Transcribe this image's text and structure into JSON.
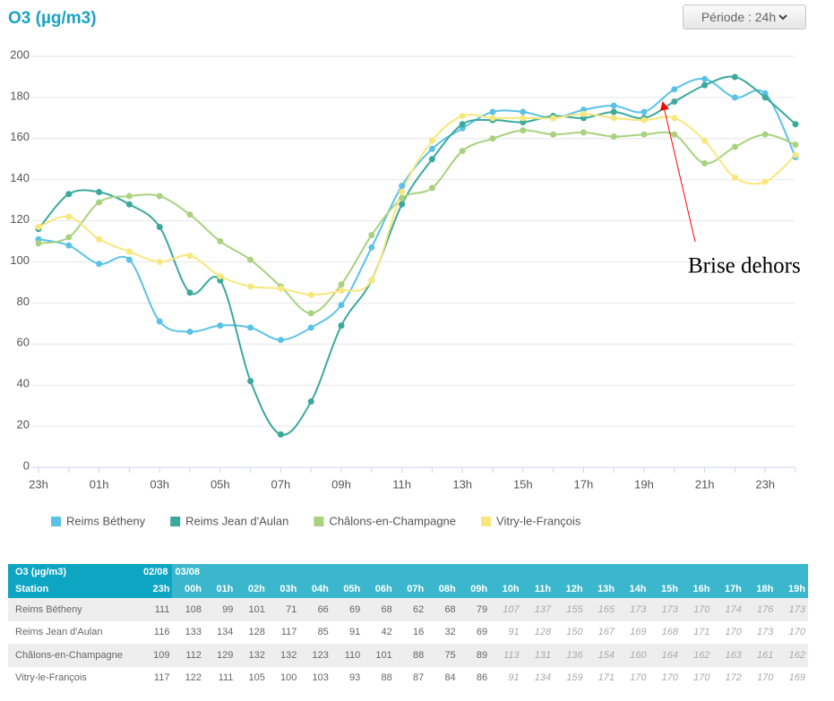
{
  "title": "O3 (µg/m3)",
  "period_button": "Période : 24h",
  "chart_data": {
    "type": "line",
    "categories": [
      "23h",
      null,
      "01h",
      null,
      "03h",
      null,
      "05h",
      null,
      "07h",
      null,
      "09h",
      null,
      "11h",
      null,
      "13h",
      null,
      "15h",
      null,
      "17h",
      null,
      "19h",
      null,
      "21h",
      null,
      "23h",
      null
    ],
    "series": [
      {
        "name": "Reims Bétheny",
        "color": "#5bc2e7",
        "values": [
          111,
          108,
          99,
          101,
          71,
          66,
          69,
          68,
          62,
          68,
          79,
          107,
          137,
          155,
          165,
          173,
          173,
          170,
          174,
          176,
          173,
          184,
          189,
          180,
          182,
          151
        ]
      },
      {
        "name": "Reims Jean d'Aulan",
        "color": "#3aa99b",
        "values": [
          116,
          133,
          134,
          128,
          117,
          85,
          91,
          42,
          16,
          32,
          69,
          91,
          128,
          150,
          167,
          169,
          168,
          171,
          170,
          173,
          170,
          178,
          186,
          190,
          180,
          167
        ]
      },
      {
        "name": "Châlons-en-Champagne",
        "color": "#a8d27f",
        "values": [
          109,
          112,
          129,
          132,
          132,
          123,
          110,
          101,
          88,
          75,
          89,
          113,
          131,
          136,
          154,
          160,
          164,
          162,
          163,
          161,
          162,
          162,
          148,
          156,
          162,
          157
        ]
      },
      {
        "name": "Vitry-le-François",
        "color": "#f8e77c",
        "values": [
          117,
          122,
          111,
          105,
          100,
          103,
          93,
          88,
          87,
          84,
          86,
          91,
          134,
          159,
          171,
          170,
          170,
          170,
          172,
          170,
          169,
          170,
          159,
          141,
          139,
          152
        ]
      }
    ],
    "ylim": [
      0,
      200
    ],
    "yticks": [
      0,
      20,
      40,
      60,
      80,
      100,
      120,
      140,
      160,
      180,
      200
    ],
    "grid": true,
    "legend": "bottom",
    "annotation": "Brise dehors"
  },
  "table": {
    "title": "O3 (µg/m3)",
    "dates": [
      "02/08",
      "03/08"
    ],
    "station_header": "Station",
    "hours": [
      "23h",
      "00h",
      "01h",
      "02h",
      "03h",
      "04h",
      "05h",
      "06h",
      "07h",
      "08h",
      "09h",
      "10h",
      "11h",
      "12h",
      "13h",
      "14h",
      "15h",
      "16h",
      "17h",
      "18h",
      "19h"
    ],
    "rows": [
      {
        "station": "Reims Bétheny",
        "values": [
          111,
          108,
          99,
          101,
          71,
          66,
          69,
          68,
          62,
          68,
          79,
          107,
          137,
          155,
          165,
          173,
          173,
          170,
          174,
          176,
          173
        ]
      },
      {
        "station": "Reims Jean d'Aulan",
        "values": [
          116,
          133,
          134,
          128,
          117,
          85,
          91,
          42,
          16,
          32,
          69,
          91,
          128,
          150,
          167,
          169,
          168,
          171,
          170,
          173,
          170
        ]
      },
      {
        "station": "Châlons-en-Champagne",
        "values": [
          109,
          112,
          129,
          132,
          132,
          123,
          110,
          101,
          88,
          75,
          89,
          113,
          131,
          136,
          154,
          160,
          164,
          162,
          163,
          161,
          162
        ]
      },
      {
        "station": "Vitry-le-François",
        "values": [
          117,
          122,
          111,
          105,
          100,
          103,
          93,
          88,
          87,
          84,
          86,
          91,
          134,
          159,
          171,
          170,
          170,
          170,
          172,
          170,
          169
        ]
      }
    ]
  }
}
